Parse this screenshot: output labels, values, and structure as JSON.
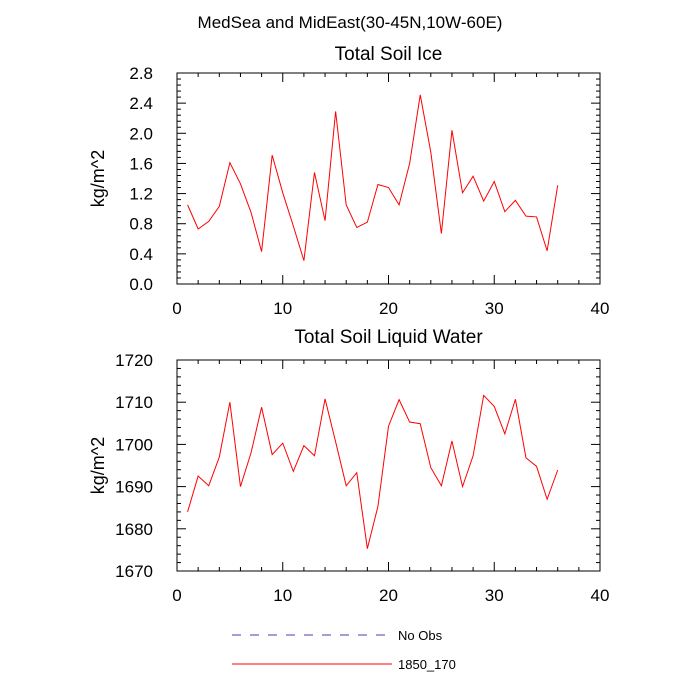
{
  "page": {
    "title": "MedSea and MidEast(30-45N,10W-60E)"
  },
  "chart_data": [
    {
      "type": "line",
      "title": "Total Soil Ice",
      "xlabel": "",
      "ylabel": "kg/m^2",
      "xlim": [
        0,
        40
      ],
      "ylim": [
        0.0,
        2.8
      ],
      "xticks": [
        0,
        10,
        20,
        30,
        40
      ],
      "xtick_labels": [
        "0",
        "10",
        "20",
        "30",
        "40"
      ],
      "yticks": [
        0.0,
        0.4,
        0.8,
        1.2,
        1.6,
        2.0,
        2.4,
        2.8
      ],
      "ytick_labels": [
        "0.0",
        "0.4",
        "0.8",
        "1.2",
        "1.6",
        "2.0",
        "2.4",
        "2.8"
      ],
      "grid": false,
      "series": [
        {
          "name": "1850_170",
          "color": "#ff0000",
          "x": [
            1,
            2,
            3,
            4,
            5,
            6,
            7,
            8,
            9,
            10,
            11,
            12,
            13,
            14,
            15,
            16,
            17,
            18,
            19,
            20,
            21,
            22,
            23,
            24,
            25,
            26,
            27,
            28,
            29,
            30,
            31,
            32,
            33,
            34,
            35,
            36
          ],
          "values": [
            1.05,
            0.73,
            0.83,
            1.03,
            1.61,
            1.33,
            0.95,
            0.43,
            1.71,
            1.21,
            0.77,
            0.31,
            1.48,
            0.84,
            2.29,
            1.05,
            0.75,
            0.82,
            1.32,
            1.28,
            1.05,
            1.6,
            2.51,
            1.75,
            0.67,
            2.04,
            1.21,
            1.43,
            1.1,
            1.36,
            0.96,
            1.11,
            0.9,
            0.89,
            0.44,
            1.31
          ]
        }
      ]
    },
    {
      "type": "line",
      "title": "Total Soil Liquid Water",
      "xlabel": "",
      "ylabel": "kg/m^2",
      "xlim": [
        0,
        40
      ],
      "ylim": [
        1670,
        1720
      ],
      "xticks": [
        0,
        10,
        20,
        30,
        40
      ],
      "xtick_labels": [
        "0",
        "10",
        "20",
        "30",
        "40"
      ],
      "yticks": [
        1670,
        1680,
        1690,
        1700,
        1710,
        1720
      ],
      "ytick_labels": [
        "1670",
        "1680",
        "1690",
        "1700",
        "1710",
        "1720"
      ],
      "grid": false,
      "series": [
        {
          "name": "1850_170",
          "color": "#ff0000",
          "x": [
            1,
            2,
            3,
            4,
            5,
            6,
            7,
            8,
            9,
            10,
            11,
            12,
            13,
            14,
            15,
            16,
            17,
            18,
            19,
            20,
            21,
            22,
            23,
            24,
            25,
            26,
            27,
            28,
            29,
            30,
            31,
            32,
            33,
            34,
            35,
            36
          ],
          "values": [
            1684,
            1692.5,
            1690.2,
            1697,
            1710,
            1690,
            1698,
            1708.8,
            1697.6,
            1700.3,
            1693.6,
            1699.7,
            1697.3,
            1710.8,
            1700.6,
            1690.2,
            1693.3,
            1675.3,
            1685.3,
            1704.3,
            1710.6,
            1705.3,
            1704.9,
            1694.5,
            1690.2,
            1700.8,
            1690,
            1697.3,
            1711.6,
            1709,
            1702.5,
            1710.7,
            1696.8,
            1694.8,
            1687,
            1693.9
          ]
        }
      ]
    }
  ],
  "legend": {
    "placement": "bottom",
    "items": [
      {
        "label": "No Obs",
        "color": "#4040b0",
        "style": "dashed"
      },
      {
        "label": "1850_170",
        "color": "#ff0000",
        "style": "solid"
      }
    ]
  }
}
